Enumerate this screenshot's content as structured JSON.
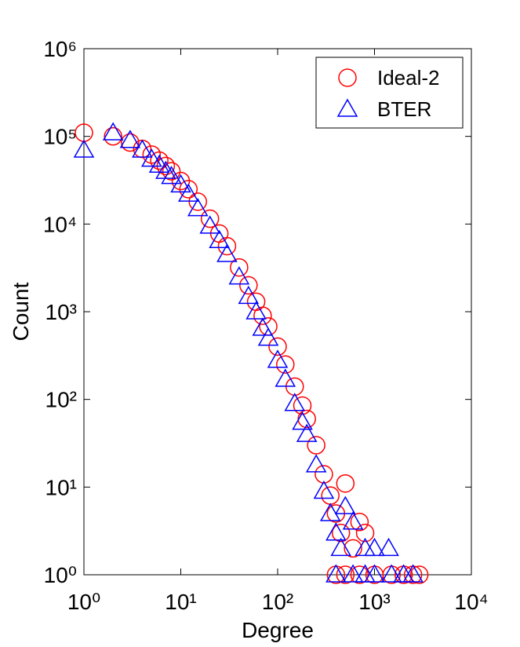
{
  "chart_data": {
    "type": "scatter",
    "x_label": "Degree",
    "y_label": "Count",
    "xscale": "log",
    "yscale": "log",
    "xlim": [
      1,
      10000
    ],
    "ylim": [
      1,
      1000000
    ],
    "xticks": [
      {
        "value": 1,
        "label": "10⁰"
      },
      {
        "value": 10,
        "label": "10¹"
      },
      {
        "value": 100,
        "label": "10²"
      },
      {
        "value": 1000,
        "label": "10³"
      },
      {
        "value": 10000,
        "label": "10⁴"
      }
    ],
    "yticks": [
      {
        "value": 1,
        "label": "10⁰"
      },
      {
        "value": 10,
        "label": "10¹"
      },
      {
        "value": 100,
        "label": "10²"
      },
      {
        "value": 1000,
        "label": "10³"
      },
      {
        "value": 10000,
        "label": "10⁴"
      },
      {
        "value": 100000,
        "label": "10⁵"
      },
      {
        "value": 1000000,
        "label": "10⁶"
      }
    ],
    "legend": "upper right",
    "series": [
      {
        "name": "Ideal-2",
        "color": "#ff0000",
        "marker": "circle",
        "x": [
          1,
          2,
          3,
          4,
          5,
          6,
          7,
          8,
          10,
          12,
          15,
          20,
          25,
          30,
          40,
          50,
          60,
          70,
          80,
          100,
          120,
          150,
          180,
          200,
          250,
          300,
          350,
          400,
          450,
          500,
          600,
          700,
          800,
          400,
          500,
          700,
          1000,
          1500,
          2000,
          2500,
          2900
        ],
        "values": [
          110000,
          100000,
          85000,
          72000,
          62000,
          53000,
          46000,
          40000,
          31000,
          25000,
          18000,
          11500,
          7800,
          5600,
          3200,
          2000,
          1300,
          900,
          680,
          400,
          250,
          140,
          85,
          60,
          30,
          14,
          8,
          5,
          3,
          11,
          2,
          4,
          3,
          1,
          1,
          1,
          1,
          1,
          1,
          1,
          1
        ]
      },
      {
        "name": "BTER",
        "color": "#0000ff",
        "marker": "triangle",
        "x": [
          1,
          2,
          3,
          4,
          5,
          6,
          7,
          8,
          10,
          12,
          15,
          20,
          25,
          30,
          40,
          50,
          60,
          70,
          80,
          100,
          120,
          150,
          180,
          200,
          250,
          300,
          350,
          400,
          450,
          500,
          600,
          800,
          1000,
          1400,
          400,
          600,
          800,
          1000,
          1500,
          2000,
          2500
        ],
        "values": [
          70000,
          110000,
          90000,
          70000,
          55000,
          47000,
          40000,
          35000,
          28000,
          22000,
          15000,
          9500,
          6500,
          4500,
          2500,
          1500,
          1000,
          650,
          500,
          280,
          170,
          90,
          55,
          40,
          18,
          9,
          5,
          3,
          2,
          6,
          4,
          2,
          2,
          2,
          1,
          1,
          1,
          1,
          1,
          1,
          1
        ]
      }
    ]
  }
}
